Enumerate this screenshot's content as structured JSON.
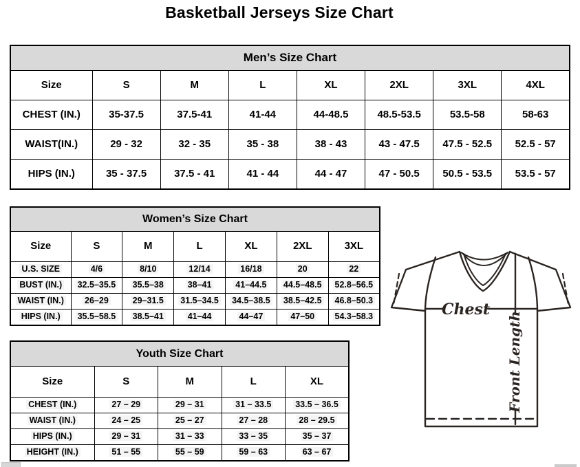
{
  "page_title": "Basketball Jerseys Size Chart",
  "tables": {
    "men": {
      "title": "Men’s Size Chart",
      "columns": [
        "Size",
        "S",
        "M",
        "L",
        "XL",
        "2XL",
        "3XL",
        "4XL"
      ],
      "rows": [
        {
          "label": "CHEST (IN.)",
          "values": [
            "35-37.5",
            "37.5-41",
            "41-44",
            "44-48.5",
            "48.5-53.5",
            "53.5-58",
            "58-63"
          ]
        },
        {
          "label": "WAIST(IN.)",
          "values": [
            "29 - 32",
            "32 - 35",
            "35 - 38",
            "38 - 43",
            "43 - 47.5",
            "47.5 - 52.5",
            "52.5 - 57"
          ]
        },
        {
          "label": "HIPS (IN.)",
          "values": [
            "35 - 37.5",
            "37.5 - 41",
            "41 - 44",
            "44 - 47",
            "47 - 50.5",
            "50.5 - 53.5",
            "53.5 - 57"
          ]
        }
      ]
    },
    "women": {
      "title": "Women’s Size Chart",
      "columns": [
        "Size",
        "S",
        "M",
        "L",
        "XL",
        "2XL",
        "3XL"
      ],
      "rows": [
        {
          "label": "U.S. SIZE",
          "values": [
            "4/6",
            "8/10",
            "12/14",
            "16/18",
            "20",
            "22"
          ]
        },
        {
          "label": "BUST (IN.)",
          "values": [
            "32.5–35.5",
            "35.5–38",
            "38–41",
            "41–44.5",
            "44.5–48.5",
            "52.8–56.5"
          ]
        },
        {
          "label": "WAIST (IN.)",
          "values": [
            "26–29",
            "29–31.5",
            "31.5–34.5",
            "34.5–38.5",
            "38.5–42.5",
            "46.8–50.3"
          ]
        },
        {
          "label": "HIPS (IN.)",
          "values": [
            "35.5–58.5",
            "38.5–41",
            "41–44",
            "44–47",
            "47–50",
            "54.3–58.3"
          ]
        }
      ]
    },
    "youth": {
      "title": "Youth Size Chart",
      "columns": [
        "Size",
        "S",
        "M",
        "L",
        "XL"
      ],
      "rows": [
        {
          "label": "CHEST (IN.)",
          "values": [
            "27 – 29",
            "29 – 31",
            "31 – 33.5",
            "33.5 – 36.5"
          ]
        },
        {
          "label": "WAIST (IN.)",
          "values": [
            "24 – 25",
            "25 – 27",
            "27 – 28",
            "28 – 29.5"
          ]
        },
        {
          "label": "HIPS (IN.)",
          "values": [
            "29 – 31",
            "31 – 33",
            "33 – 35",
            "35 – 37"
          ]
        },
        {
          "label": "HEIGHT (IN.)",
          "values": [
            "51 – 55",
            "55 – 59",
            "59 – 63",
            "63 – 67"
          ]
        }
      ]
    }
  },
  "diagram": {
    "chest_label": "Chest",
    "front_length_label": "Front Length"
  },
  "colors": {
    "table_header_bg": "#d9d9d9",
    "table_border": "#000000",
    "diagram_line": "#2b2522"
  }
}
